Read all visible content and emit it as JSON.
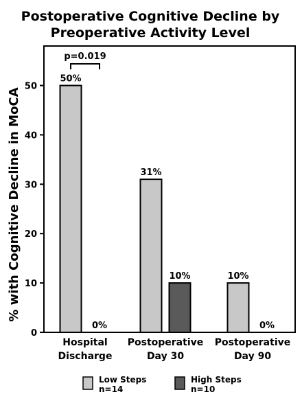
{
  "chart_data": {
    "type": "bar",
    "title_line1": "Postoperative Cognitive Decline by",
    "title_line2": "Preoperative Activity Level",
    "ylabel": "% with Cognitive Decline in MoCA",
    "xlabel": "",
    "ylim": [
      0,
      58
    ],
    "yticks": [
      "0",
      "10",
      "20",
      "30",
      "40",
      "50"
    ],
    "categories": [
      {
        "line1": "Hospital",
        "line2": "Discharge"
      },
      {
        "line1": "Postoperative",
        "line2": "Day 30"
      },
      {
        "line1": "Postoperative",
        "line2": "Day 90"
      }
    ],
    "series": [
      {
        "name": "Low Steps",
        "name_sub": "n=14",
        "color": "#c8c8c8",
        "values": [
          50,
          31,
          10
        ],
        "labels": [
          "50%",
          "31%",
          "10%"
        ]
      },
      {
        "name": "High Steps",
        "name_sub": "n=10",
        "color": "#5a5a5a",
        "values": [
          0,
          10,
          0
        ],
        "labels": [
          "0%",
          "10%",
          "0%"
        ]
      }
    ],
    "annotation": {
      "text": "p=0.019",
      "category_index": 0
    },
    "legend_position": "bottom",
    "grid": false
  }
}
